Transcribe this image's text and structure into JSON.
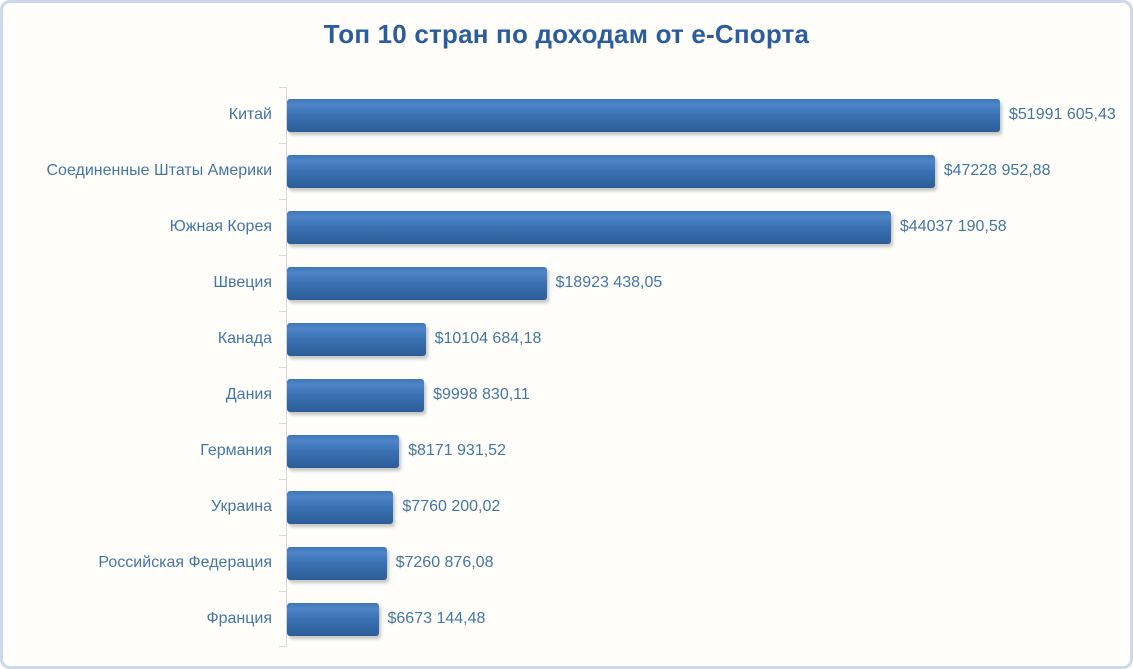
{
  "chart_data": {
    "type": "bar",
    "orientation": "horizontal",
    "title": "Топ 10 стран по доходам от е-Спорта",
    "categories": [
      "Китай",
      "Соединенные Штаты Америки",
      "Южная Корея",
      "Швеция",
      "Канада",
      "Дания",
      "Германия",
      "Украина",
      "Российская Федерация",
      "Франция"
    ],
    "values": [
      51991605.43,
      47228952.88,
      44037190.58,
      18923438.05,
      10104684.18,
      9998830.11,
      8171931.52,
      7760200.02,
      7260876.08,
      6673144.48
    ],
    "value_labels": [
      "$51991 605,43",
      "$47228 952,88",
      "$44037 190,58",
      "$18923 438,05",
      "$10104 684,18",
      "$9998 830,11",
      "$8171 931,52",
      "$7760 200,02",
      "$7260 876,08",
      "$6673 144,48"
    ],
    "xlim": [
      0,
      52000000
    ],
    "grid": false,
    "legend": false
  },
  "colors": {
    "title": "#2b5d9c",
    "category_label": "#4577a5",
    "value_label": "#4577a5",
    "bar_fill_light": "#4d85c7",
    "bar_fill_mid": "#3a71b3",
    "bar_fill_dark": "#2c5c97",
    "axis_line": "#d9d9d9",
    "frame_border": "#ccd9eb",
    "background": "#fffefb"
  }
}
